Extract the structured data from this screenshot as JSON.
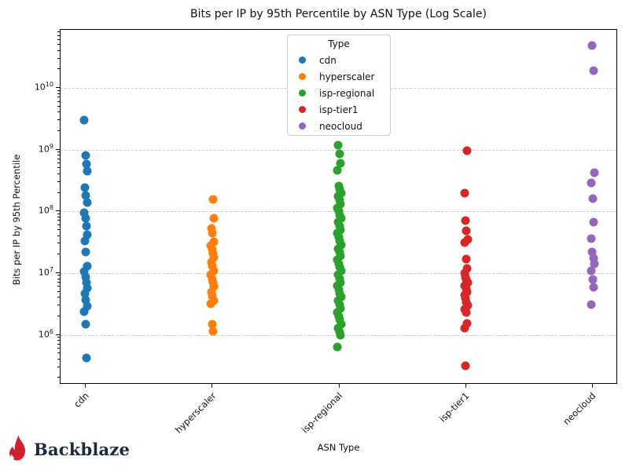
{
  "title": "Bits per IP by 95th Percentile by ASN Type (Log Scale)",
  "xlabel": "ASN Type",
  "ylabel": "Bits per IP by 95th Percentile",
  "legend": {
    "title": "Type",
    "entries": [
      {
        "label": "cdn",
        "color": "#1f77b4"
      },
      {
        "label": "hyperscaler",
        "color": "#ff7f0e"
      },
      {
        "label": "isp-regional",
        "color": "#2ca02c"
      },
      {
        "label": "isp-tier1",
        "color": "#d62728"
      },
      {
        "label": "neocloud",
        "color": "#9467bd"
      }
    ]
  },
  "logo": {
    "text": "Backblaze",
    "flame_color": "#d2202f",
    "text_color": "#1b2840"
  },
  "chart_data": {
    "type": "scatter",
    "x_categories": [
      "cdn",
      "hyperscaler",
      "isp-regional",
      "isp-tier1",
      "neocloud"
    ],
    "xlabel": "ASN Type",
    "ylabel": "Bits per IP by 95th Percentile",
    "y_scale": "log",
    "y_tick_exponents": [
      6,
      7,
      8,
      9,
      10
    ],
    "ylim": [
      160000.0,
      89000000000.0
    ],
    "grid": "horizontal-dashed-major",
    "legend_position": "upper center",
    "series": [
      {
        "name": "cdn",
        "color": "#1f77b4",
        "values": [
          3000000000.0,
          810000000.0,
          590000000.0,
          450000000.0,
          240000000.0,
          180000000.0,
          140000000.0,
          95000000.0,
          78000000.0,
          58000000.0,
          42000000.0,
          33000000.0,
          22000000.0,
          13000000.0,
          10500000.0,
          8500000.0,
          7000000.0,
          5700000.0,
          4600000.0,
          3700000.0,
          2900000.0,
          2400000.0,
          1500000.0,
          420000.0
        ]
      },
      {
        "name": "hyperscaler",
        "color": "#ff7f0e",
        "values": [
          155000000.0,
          77000000.0,
          53000000.0,
          44000000.0,
          32000000.0,
          28000000.0,
          24000000.0,
          21000000.0,
          18000000.0,
          15000000.0,
          13000000.0,
          11000000.0,
          9500000.0,
          8000000.0,
          7000000.0,
          6000000.0,
          5000000.0,
          4300000.0,
          3600000.0,
          3200000.0,
          1500000.0,
          1150000.0
        ]
      },
      {
        "name": "isp-regional",
        "color": "#2ca02c",
        "values": [
          1180000000.0,
          850000000.0,
          600000000.0,
          460000000.0,
          260000000.0,
          230000000.0,
          200000000.0,
          175000000.0,
          150000000.0,
          130000000.0,
          115000000.0,
          100000000.0,
          88000000.0,
          77000000.0,
          67000000.0,
          58000000.0,
          50000000.0,
          44000000.0,
          38000000.0,
          33000000.0,
          29000000.0,
          25000000.0,
          22000000.0,
          19000000.0,
          16500000.0,
          14000000.0,
          12500000.0,
          11000000.0,
          9500000.0,
          8200000.0,
          7100000.0,
          6200000.0,
          5400000.0,
          4700000.0,
          4100000.0,
          3600000.0,
          3100000.0,
          2700000.0,
          2300000.0,
          2000000.0,
          1750000.0,
          1500000.0,
          1300000.0,
          1100000.0,
          980000.0,
          640000.0
        ]
      },
      {
        "name": "isp-tier1",
        "color": "#d62728",
        "values": [
          970000000.0,
          200000000.0,
          72000000.0,
          49000000.0,
          35000000.0,
          31000000.0,
          17000000.0,
          12000000.0,
          10000000.0,
          8700000.0,
          7800000.0,
          7000000.0,
          6300000.0,
          5600000.0,
          5000000.0,
          4400000.0,
          3900000.0,
          3400000.0,
          3000000.0,
          2600000.0,
          2300000.0,
          1550000.0,
          1300000.0,
          310000.0
        ]
      },
      {
        "name": "neocloud",
        "color": "#9467bd",
        "values": [
          48500000000.0,
          19000000000.0,
          420000000.0,
          290000000.0,
          160000000.0,
          66000000.0,
          36000000.0,
          22000000.0,
          17500000.0,
          14000000.0,
          11000000.0,
          8000000.0,
          5800000.0,
          3100000.0
        ]
      }
    ]
  }
}
